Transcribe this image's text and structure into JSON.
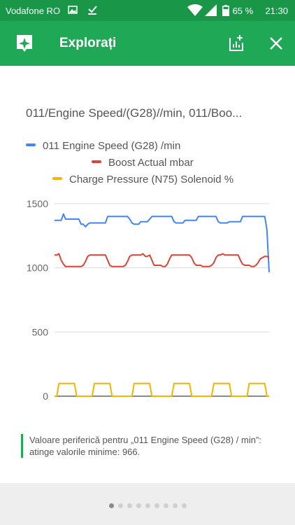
{
  "status_bar": {
    "carrier": "Vodafone RO",
    "battery": "65 %",
    "time": "21:30",
    "icons": [
      "image-icon",
      "checkmark-download-icon",
      "wifi-icon",
      "signal-icon",
      "battery-icon"
    ]
  },
  "app_bar": {
    "title": "Explorați",
    "icons": [
      "explore-icon",
      "add-chart-icon",
      "close-icon"
    ],
    "color": "#1fa855"
  },
  "chart_data": {
    "type": "line",
    "title": "011/Engine Speed/(G28)//min, 011/Boo...",
    "ylim": [
      0,
      1500
    ],
    "y_ticks": [
      "0",
      "500",
      "1000",
      "1500"
    ],
    "grid": true,
    "legend": "top",
    "series": [
      {
        "name": "011 Engine Speed (G28) /min",
        "color": "#4285f4",
        "values": [
          1370,
          1370,
          1370,
          1370,
          1420,
          1380,
          1380,
          1380,
          1380,
          1380,
          1380,
          1380,
          1340,
          1340,
          1320,
          1340,
          1350,
          1350,
          1350,
          1350,
          1350,
          1350,
          1350,
          1350,
          1400,
          1400,
          1400,
          1400,
          1400,
          1400,
          1400,
          1400,
          1400,
          1400,
          1380,
          1350,
          1340,
          1340,
          1340,
          1360,
          1360,
          1360,
          1360,
          1380,
          1400,
          1400,
          1400,
          1400,
          1400,
          1400,
          1400,
          1400,
          1400,
          1400,
          1360,
          1350,
          1350,
          1350,
          1350,
          1370,
          1370,
          1370,
          1370,
          1370,
          1370,
          1400,
          1400,
          1400,
          1400,
          1400,
          1400,
          1400,
          1400,
          1400,
          1360,
          1350,
          1350,
          1350,
          1350,
          1360,
          1360,
          1360,
          1360,
          1360,
          1360,
          1400,
          1400,
          1400,
          1400,
          1400,
          1400,
          1400,
          1400,
          1400,
          1400,
          1400,
          1300,
          966
        ]
      },
      {
        "name": "Boost Actual mbar",
        "color": "#db4437",
        "values": [
          1100,
          1100,
          1110,
          1060,
          1030,
          1010,
          1010,
          1010,
          1010,
          1010,
          1010,
          1010,
          1010,
          1020,
          1050,
          1090,
          1100,
          1100,
          1100,
          1100,
          1100,
          1100,
          1100,
          1100,
          1060,
          1020,
          1010,
          1010,
          1010,
          1010,
          1010,
          1010,
          1020,
          1050,
          1090,
          1100,
          1100,
          1100,
          1100,
          1100,
          1110,
          1090,
          1090,
          1100,
          1060,
          1020,
          1020,
          1020,
          1020,
          1010,
          1010,
          1030,
          1070,
          1100,
          1100,
          1100,
          1100,
          1100,
          1100,
          1100,
          1100,
          1100,
          1080,
          1040,
          1020,
          1020,
          1020,
          1010,
          1010,
          1010,
          1010,
          1020,
          1040,
          1080,
          1100,
          1100,
          1110,
          1100,
          1100,
          1100,
          1100,
          1100,
          1100,
          1100,
          1060,
          1030,
          1020,
          1020,
          1020,
          1010,
          1010,
          1020,
          1040,
          1070,
          1080,
          1090,
          1090,
          1080
        ]
      },
      {
        "name": "Charge Pressure (N75) Solenoid %",
        "color": "#f4b400",
        "values": [
          0,
          0,
          100,
          100,
          100,
          100,
          100,
          100,
          100,
          100,
          0,
          0,
          0,
          0,
          0,
          0,
          0,
          0,
          100,
          100,
          100,
          100,
          100,
          100,
          100,
          100,
          0,
          0,
          0,
          0,
          0,
          0,
          0,
          0,
          0,
          0,
          100,
          100,
          100,
          100,
          100,
          100,
          100,
          100,
          0,
          0,
          0,
          0,
          0,
          0,
          0,
          0,
          0,
          0,
          100,
          100,
          100,
          100,
          100,
          100,
          100,
          100,
          0,
          0,
          0,
          0,
          0,
          0,
          0,
          0,
          0,
          0,
          100,
          100,
          100,
          100,
          100,
          100,
          100,
          100,
          0,
          0,
          0,
          0,
          0,
          0,
          0,
          0,
          100,
          100,
          100,
          100,
          100,
          100,
          100,
          100,
          0,
          0
        ]
      }
    ]
  },
  "insight": {
    "text": "Valoare periferică pentru „011 Engine Speed (G28) / min”: atinge valorile minime: 966."
  },
  "pager": {
    "count": 9,
    "active": 0
  }
}
